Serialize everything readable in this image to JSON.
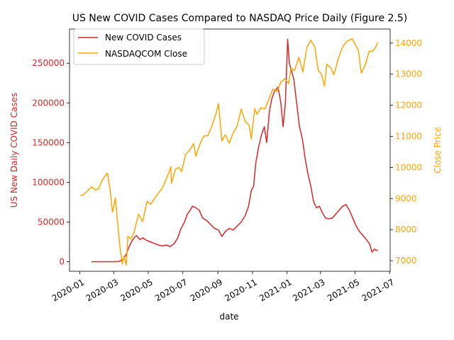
{
  "chart_data": {
    "type": "line",
    "title": "US New COVID Cases Compared to NASDAQ Price Daily (Figure 2.5)",
    "xlabel": "date",
    "ylabel_left": "US New Daily COVID Cases",
    "ylabel_right": "Close Price",
    "x_ticks": [
      "2020-01",
      "2020-03",
      "2020-05",
      "2020-07",
      "2020-09",
      "2020-11",
      "2021-01",
      "2021-03",
      "2021-05",
      "2021-07"
    ],
    "xlim": [
      "2019-12-14",
      "2021-07-02"
    ],
    "ylim_left": [
      -12000,
      293000
    ],
    "ylim_right": [
      6660,
      14450
    ],
    "y_ticks_left": [
      0,
      50000,
      100000,
      150000,
      200000,
      250000
    ],
    "y_ticks_right": [
      7000,
      8000,
      9000,
      10000,
      11000,
      12000,
      13000,
      14000
    ],
    "grid": false,
    "legend_position": "top-left",
    "colors": {
      "left_axis": "#d62728",
      "right_axis": "#ffa500"
    },
    "series": [
      {
        "name": "New COVID Cases",
        "axis": "left",
        "color": "#d62728",
        "points": [
          [
            "2020-01-22",
            0
          ],
          [
            "2020-02-15",
            0
          ],
          [
            "2020-03-01",
            50
          ],
          [
            "2020-03-10",
            300
          ],
          [
            "2020-03-17",
            3000
          ],
          [
            "2020-03-22",
            8000
          ],
          [
            "2020-03-27",
            17000
          ],
          [
            "2020-04-02",
            26000
          ],
          [
            "2020-04-06",
            30000
          ],
          [
            "2020-04-10",
            33000
          ],
          [
            "2020-04-16",
            28000
          ],
          [
            "2020-04-22",
            30000
          ],
          [
            "2020-04-28",
            27000
          ],
          [
            "2020-05-05",
            25000
          ],
          [
            "2020-05-12",
            23000
          ],
          [
            "2020-05-19",
            21000
          ],
          [
            "2020-05-26",
            20000
          ],
          [
            "2020-06-02",
            21000
          ],
          [
            "2020-06-09",
            19000
          ],
          [
            "2020-06-16",
            23000
          ],
          [
            "2020-06-22",
            30000
          ],
          [
            "2020-06-28",
            42000
          ],
          [
            "2020-07-04",
            50000
          ],
          [
            "2020-07-09",
            60000
          ],
          [
            "2020-07-14",
            65000
          ],
          [
            "2020-07-18",
            70000
          ],
          [
            "2020-07-24",
            68000
          ],
          [
            "2020-07-30",
            65000
          ],
          [
            "2020-08-05",
            55000
          ],
          [
            "2020-08-12",
            52000
          ],
          [
            "2020-08-19",
            47000
          ],
          [
            "2020-08-26",
            42000
          ],
          [
            "2020-09-02",
            40000
          ],
          [
            "2020-09-08",
            32000
          ],
          [
            "2020-09-14",
            38000
          ],
          [
            "2020-09-21",
            42000
          ],
          [
            "2020-09-28",
            40000
          ],
          [
            "2020-10-05",
            45000
          ],
          [
            "2020-10-12",
            50000
          ],
          [
            "2020-10-19",
            58000
          ],
          [
            "2020-10-25",
            70000
          ],
          [
            "2020-10-30",
            90000
          ],
          [
            "2020-11-03",
            95000
          ],
          [
            "2020-11-07",
            125000
          ],
          [
            "2020-11-12",
            145000
          ],
          [
            "2020-11-17",
            160000
          ],
          [
            "2020-11-22",
            170000
          ],
          [
            "2020-11-26",
            150000
          ],
          [
            "2020-12-01",
            190000
          ],
          [
            "2020-12-05",
            205000
          ],
          [
            "2020-12-10",
            215000
          ],
          [
            "2020-12-16",
            220000
          ],
          [
            "2020-12-21",
            200000
          ],
          [
            "2020-12-25",
            170000
          ],
          [
            "2020-12-29",
            200000
          ],
          [
            "2021-01-02",
            280000
          ],
          [
            "2021-01-05",
            250000
          ],
          [
            "2021-01-09",
            240000
          ],
          [
            "2021-01-13",
            230000
          ],
          [
            "2021-01-18",
            200000
          ],
          [
            "2021-01-23",
            170000
          ],
          [
            "2021-01-28",
            155000
          ],
          [
            "2021-02-02",
            130000
          ],
          [
            "2021-02-07",
            110000
          ],
          [
            "2021-02-12",
            95000
          ],
          [
            "2021-02-17",
            75000
          ],
          [
            "2021-02-22",
            68000
          ],
          [
            "2021-02-27",
            70000
          ],
          [
            "2021-03-04",
            62000
          ],
          [
            "2021-03-10",
            55000
          ],
          [
            "2021-03-16",
            54000
          ],
          [
            "2021-03-22",
            55000
          ],
          [
            "2021-03-28",
            60000
          ],
          [
            "2021-04-03",
            65000
          ],
          [
            "2021-04-09",
            70000
          ],
          [
            "2021-04-15",
            72000
          ],
          [
            "2021-04-21",
            65000
          ],
          [
            "2021-04-27",
            55000
          ],
          [
            "2021-05-03",
            45000
          ],
          [
            "2021-05-09",
            38000
          ],
          [
            "2021-05-15",
            33000
          ],
          [
            "2021-05-21",
            28000
          ],
          [
            "2021-05-27",
            22000
          ],
          [
            "2021-05-31",
            12000
          ],
          [
            "2021-06-04",
            16000
          ],
          [
            "2021-06-08",
            14000
          ],
          [
            "2021-06-10",
            15000
          ]
        ]
      },
      {
        "name": "NASDAQCOM Close",
        "axis": "right",
        "color": "#ffa500",
        "points": [
          [
            "2020-01-02",
            9090
          ],
          [
            "2020-01-08",
            9130
          ],
          [
            "2020-01-15",
            9250
          ],
          [
            "2020-01-22",
            9380
          ],
          [
            "2020-01-28",
            9280
          ],
          [
            "2020-02-03",
            9300
          ],
          [
            "2020-02-10",
            9600
          ],
          [
            "2020-02-19",
            9820
          ],
          [
            "2020-02-24",
            9220
          ],
          [
            "2020-02-28",
            8560
          ],
          [
            "2020-03-04",
            9020
          ],
          [
            "2020-03-09",
            8000
          ],
          [
            "2020-03-12",
            7450
          ],
          [
            "2020-03-16",
            6900
          ],
          [
            "2020-03-19",
            7150
          ],
          [
            "2020-03-23",
            6860
          ],
          [
            "2020-03-26",
            7790
          ],
          [
            "2020-03-31",
            7700
          ],
          [
            "2020-04-06",
            7900
          ],
          [
            "2020-04-09",
            8150
          ],
          [
            "2020-04-14",
            8500
          ],
          [
            "2020-04-21",
            8260
          ],
          [
            "2020-04-29",
            8910
          ],
          [
            "2020-05-05",
            8810
          ],
          [
            "2020-05-12",
            9000
          ],
          [
            "2020-05-19",
            9180
          ],
          [
            "2020-05-26",
            9340
          ],
          [
            "2020-06-03",
            9680
          ],
          [
            "2020-06-10",
            10020
          ],
          [
            "2020-06-11",
            9490
          ],
          [
            "2020-06-18",
            9940
          ],
          [
            "2020-06-24",
            10000
          ],
          [
            "2020-06-29",
            9870
          ],
          [
            "2020-07-06",
            10430
          ],
          [
            "2020-07-13",
            10550
          ],
          [
            "2020-07-20",
            10770
          ],
          [
            "2020-07-24",
            10360
          ],
          [
            "2020-07-31",
            10740
          ],
          [
            "2020-08-07",
            11010
          ],
          [
            "2020-08-14",
            11020
          ],
          [
            "2020-08-21",
            11310
          ],
          [
            "2020-08-28",
            11700
          ],
          [
            "2020-09-02",
            12050
          ],
          [
            "2020-09-08",
            10850
          ],
          [
            "2020-09-14",
            11050
          ],
          [
            "2020-09-21",
            10780
          ],
          [
            "2020-09-28",
            11110
          ],
          [
            "2020-10-05",
            11330
          ],
          [
            "2020-10-12",
            11880
          ],
          [
            "2020-10-19",
            11480
          ],
          [
            "2020-10-26",
            11360
          ],
          [
            "2020-10-30",
            10910
          ],
          [
            "2020-11-05",
            11890
          ],
          [
            "2020-11-09",
            11710
          ],
          [
            "2020-11-16",
            11920
          ],
          [
            "2020-11-23",
            11880
          ],
          [
            "2020-11-30",
            12200
          ],
          [
            "2020-12-07",
            12520
          ],
          [
            "2020-12-14",
            12440
          ],
          [
            "2020-12-21",
            12740
          ],
          [
            "2020-12-28",
            12850
          ],
          [
            "2021-01-04",
            12700
          ],
          [
            "2021-01-08",
            13200
          ],
          [
            "2021-01-14",
            13110
          ],
          [
            "2021-01-22",
            13540
          ],
          [
            "2021-01-29",
            13070
          ],
          [
            "2021-02-05",
            13860
          ],
          [
            "2021-02-12",
            14095
          ],
          [
            "2021-02-19",
            13870
          ],
          [
            "2021-02-25",
            13120
          ],
          [
            "2021-03-03",
            12990
          ],
          [
            "2021-03-08",
            12610
          ],
          [
            "2021-03-12",
            13320
          ],
          [
            "2021-03-19",
            13210
          ],
          [
            "2021-03-25",
            12980
          ],
          [
            "2021-04-01",
            13480
          ],
          [
            "2021-04-08",
            13830
          ],
          [
            "2021-04-16",
            14050
          ],
          [
            "2021-04-26",
            14140
          ],
          [
            "2021-05-03",
            13900
          ],
          [
            "2021-05-07",
            13750
          ],
          [
            "2021-05-12",
            13030
          ],
          [
            "2021-05-19",
            13300
          ],
          [
            "2021-05-26",
            13740
          ],
          [
            "2021-06-01",
            13740
          ],
          [
            "2021-06-07",
            13880
          ],
          [
            "2021-06-10",
            14020
          ]
        ]
      }
    ]
  }
}
